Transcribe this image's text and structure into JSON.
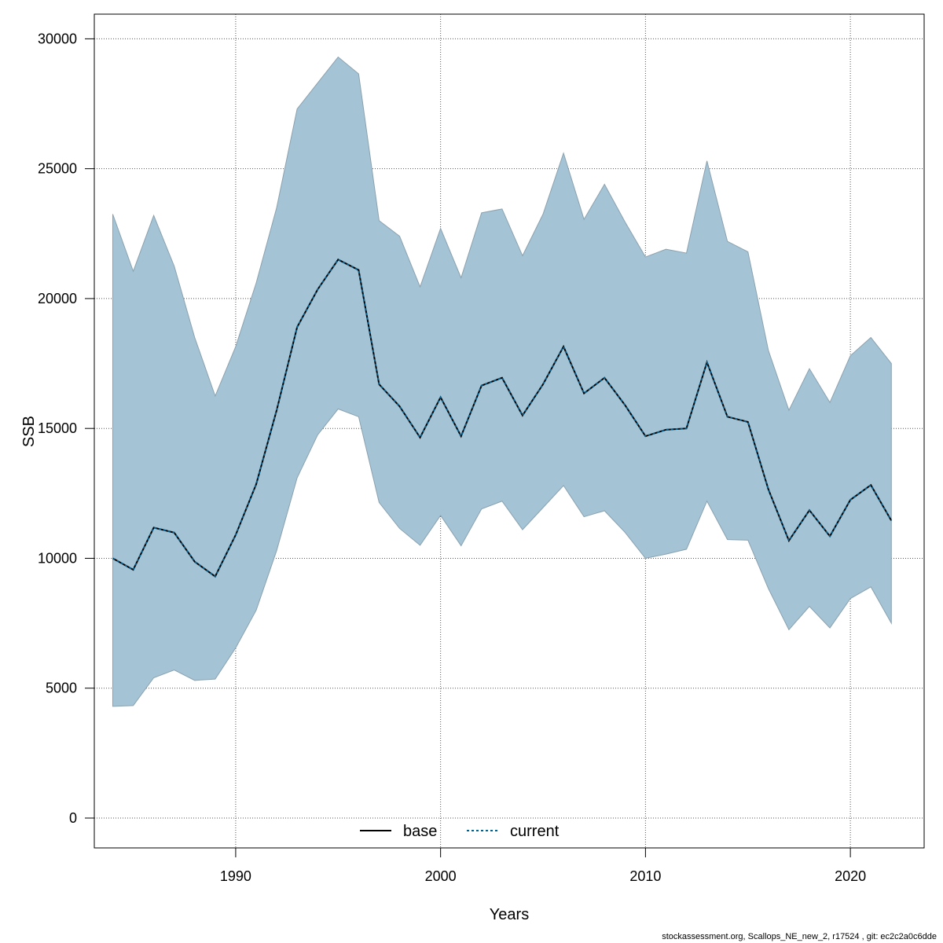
{
  "chart_data": {
    "type": "line",
    "xlabel": "Years",
    "ylabel": "SSB",
    "xlim": [
      1983.1,
      2023.6
    ],
    "ylim": [
      -1150,
      30950
    ],
    "x_ticks": [
      1990,
      2000,
      2010,
      2020
    ],
    "y_ticks": [
      0,
      5000,
      10000,
      15000,
      20000,
      25000,
      30000
    ],
    "grid": true,
    "legend_position": "bottom-center",
    "x": [
      1984,
      1985,
      1986,
      1987,
      1988,
      1989,
      1990,
      1991,
      1992,
      1993,
      1994,
      1995,
      1996,
      1997,
      1998,
      1999,
      2000,
      2001,
      2002,
      2003,
      2004,
      2005,
      2006,
      2007,
      2008,
      2009,
      2010,
      2011,
      2012,
      2013,
      2014,
      2015,
      2016,
      2017,
      2018,
      2019,
      2020,
      2021,
      2022
    ],
    "band": {
      "upper": [
        23250,
        21050,
        23200,
        21250,
        18500,
        16250,
        18150,
        20600,
        23500,
        27300,
        28300,
        29300,
        28650,
        23000,
        22400,
        20450,
        22700,
        20800,
        23300,
        23450,
        21650,
        23250,
        25600,
        23050,
        24400,
        22950,
        21600,
        21900,
        21750,
        25300,
        22200,
        21800,
        18000,
        15700,
        17300,
        16000,
        17800,
        18500,
        17500
      ],
      "lower": [
        4300,
        4330,
        5400,
        5700,
        5300,
        5350,
        6550,
        8000,
        10300,
        13100,
        14750,
        15750,
        15450,
        12150,
        11150,
        10500,
        11650,
        10480,
        11900,
        12200,
        11100,
        11950,
        12800,
        11600,
        11830,
        11000,
        10000,
        10160,
        10350,
        12200,
        10720,
        10700,
        8830,
        7250,
        8150,
        7320,
        8450,
        8900,
        7500
      ],
      "fill": "#a4c3d4",
      "stroke": "#8aa2b0"
    },
    "series": [
      {
        "name": "base",
        "values": [
          10000,
          9560,
          11180,
          10990,
          9870,
          9300,
          10900,
          12850,
          15700,
          18900,
          20350,
          21500,
          21100,
          16700,
          15850,
          14650,
          16200,
          14700,
          16650,
          16950,
          15500,
          16700,
          18150,
          16350,
          16950,
          15900,
          14700,
          14950,
          15000,
          17550,
          15450,
          15250,
          12650,
          10680,
          11850,
          10850,
          12250,
          12820,
          11450
        ],
        "color": "#000000",
        "dash": "solid"
      },
      {
        "name": "current",
        "values": [
          10000,
          9560,
          11180,
          10990,
          9870,
          9300,
          10900,
          12850,
          15700,
          18900,
          20350,
          21500,
          21100,
          16700,
          15850,
          14650,
          16200,
          14700,
          16650,
          16950,
          15500,
          16700,
          18150,
          16350,
          16950,
          15900,
          14700,
          14950,
          15000,
          17550,
          15450,
          15250,
          12650,
          10680,
          11850,
          10850,
          12250,
          12820,
          11450
        ],
        "color": "#0a5f8a",
        "dash": "dotted"
      }
    ]
  },
  "footer": "stockassessment.org, Scallops_NE_new_2, r17524 , git: ec2c2a0c6dde"
}
